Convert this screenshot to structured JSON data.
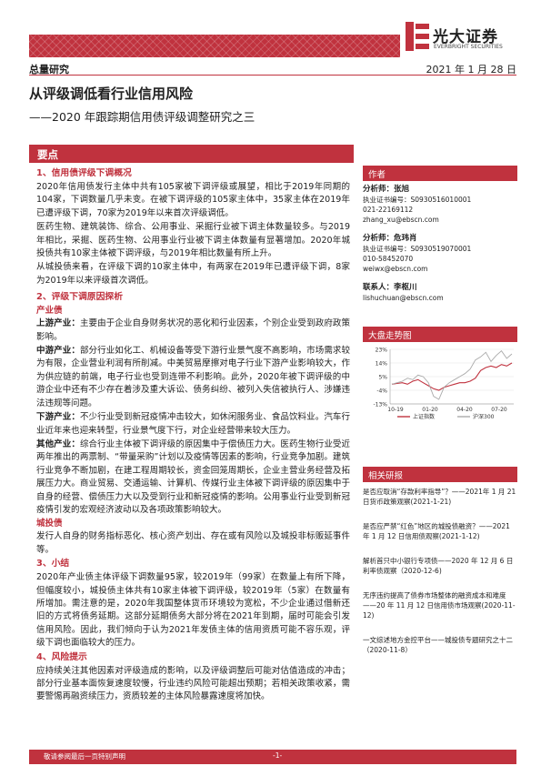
{
  "header": {
    "logo_cn": "光大证券",
    "logo_en": "EVERBRIGHT SECURITIES",
    "report_type": "总量研究",
    "date": "2021 年 1 月 28 日"
  },
  "title": "从评级调低看行业信用风险",
  "subtitle": "——2020 年跟踪期信用债评级调整研究之三",
  "section_label": "要点",
  "main": {
    "s1_title": "1、信用债评级下调概况",
    "s1_p1": "2020年信用债发行主体中共有105家被下调评级或展望，相比于2019年同期的104家，下调数量几乎未变。在被下调评级的105家主体中，35家主体在2019年已遭评级下调，70家为2019年以来首次评级调低。",
    "s1_p2": "医药生物、建筑装饰、综合、公用事业、采掘行业被下调主体数量较多。与2019年相比，采掘、医药生物、公用事业行业被下调主体数量有显著增加。2020年城投债共有10家主体被下调评级，与2019年相比数量有所上升。",
    "s1_p3": "从城投债来看，在评级下调的10家主体中，有两家在2019年已遭评级下调，8家为2019年以来评级首次调低。",
    "s2_title": "2、评级下调原因探析",
    "s2_sub1": "产业债",
    "p_up_label": "上游产业：",
    "p_up": "主要由于企业自身财务状况的恶化和行业因素，个别企业受到政府政策影响。",
    "p_mid_label": "中游产业：",
    "p_mid": "部分行业如化工、机械设备等受下游行业景气度不高影响，市场需求较为有限，企业营业利润有所削减。中美贸易摩擦对电子行业下游产业影响较大，作为供应链的前端，电子行业也受到连带不利影响。此外，2020年被下调评级的中游企业中还有不少存在着涉及重大诉讼、债务纠纷、被列入失信被执行人、涉嫌违法违规等问题。",
    "p_down_label": "下游产业：",
    "p_down": "不少行业受到新冠疫情冲击较大，如休闲服务业、食品饮料业。汽车行业近年来也迎来转型，行业景气度下行，对企业经营带来较大压力。",
    "p_other_label": "其他产业：",
    "p_other": "综合行业主体被下调评级的原因集中于偿债压力大。医药生物行业受近两年推出的两票制、“带量采购”计划以及疫情等因素的影响，行业竞争加剧。建筑行业竞争不断加剧，在建工程周期较长，资金回笼周期长，企业主营业务经营及拓展压力大。商业贸易、交通运输、计算机、传媒行业主体被下调评级的原因集中于自身的经营、偿债压力大以及受到行业和新冠疫情的影响。公用事业行业受到新冠疫情引发的宏观经济波动以及各项政策影响较大。",
    "s2_sub2": "城投债",
    "p_ct": "发行人自身的财务指标恶化、核心资产划出、存在或有风险以及城投非标贩延事件等。",
    "s3_title": "3、小结",
    "s3_p": "2020年产业债主体评级下调数量95家，较2019年（99家）在数量上有所下降，但幅度较小，城投债主体共有10家主体被下调评级，较2019年（5家）在数量有所增加。需注意的是，2020年我国整体货币环境较为宽松，不少企业通过借新还旧的方式将债务延期。这部分延期债务大部分将在2021年到期，届时可能会引发信用风险。因此，我们倾向于认为2021年发债主体的信用资质可能不容乐观，评级下调也面临较大的压力。",
    "s4_title": "4、风险提示",
    "s4_p": "应持续关注其他因素对评级造成的影响，以及评级调整后可能对估值造成的冲击；部分行业基本面恢复速度较慢，行业违约风险可能超出预期；若相关政策收紧，需要警惕再融资续压力，资质较差的主体风险暴露速度将加快。"
  },
  "sidebar": {
    "author_title": "作者",
    "analyst1_name": "分析师：张旭",
    "analyst1_cert": "执业证书编号：S0930516010001",
    "analyst1_phone": "021-22169112",
    "analyst1_email": "zhang_xu@ebscn.com",
    "analyst2_name": "分析师：危玮肖",
    "analyst2_cert": "执业证书编号：S0930519070001",
    "analyst2_phone": "010-58452070",
    "analyst2_email": "weiwx@ebscn.com",
    "contact_name": "联系人：李枢川",
    "contact_email": "lishuchuan@ebscn.com",
    "chart_title": "大盘走势图",
    "related_title": "相关研报",
    "related": [
      "是否应取消“存款利率指导”？——2021年 1 月 21 日货币政策观察(2021-1-21)",
      "是否应严禁“红色”地区的城投债融资？——2021 年 1 月 12 日信用债观察(2021-1-12)",
      "解析首只中小银行专项债——2020 年 12 月 6 日利率债观察（2020-12-6)",
      "无序违约提高了债券市场整体的融资成本和难度——20 年 11 月 12 日信用债市场观察(2020-11-12)",
      "一文综述地方金控平台——城投债专题研究之十二（2020-11-8）"
    ]
  },
  "chart_data": {
    "type": "line",
    "x_ticks": [
      "10-19",
      "01-20",
      "04-20",
      "07-20"
    ],
    "y_ticks": [
      "23%",
      "14%",
      "5%",
      "-4%",
      "-13%"
    ],
    "ylim": [
      -13,
      23
    ],
    "series": [
      {
        "name": "上证指数",
        "color": "#c0323e",
        "values": [
          0,
          0.5,
          1,
          0,
          2,
          3,
          1,
          -1,
          -3,
          -4,
          -2,
          -1,
          0,
          1,
          1,
          2,
          4,
          9,
          11,
          12,
          11,
          13,
          12,
          14
        ]
      },
      {
        "name": "沪深300",
        "color": "#aaaaaa",
        "values": [
          0,
          1,
          2,
          4,
          3,
          6,
          5,
          1,
          -8,
          -10,
          -2,
          1,
          3,
          5,
          7,
          10,
          16,
          18,
          21,
          15,
          19,
          22,
          17,
          20
        ]
      }
    ],
    "legend": [
      "上证指数",
      "沪深300"
    ]
  },
  "footer": {
    "disclaimer": "敬请参阅最后一页特别声明",
    "page": "-1-"
  }
}
